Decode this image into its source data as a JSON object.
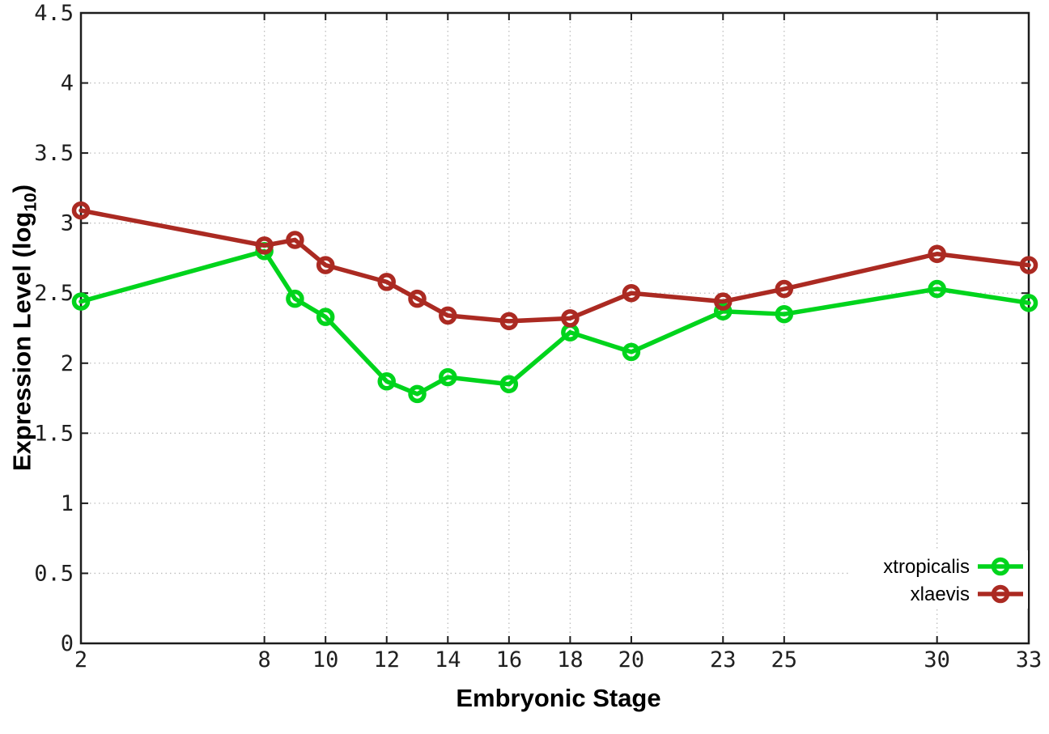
{
  "figure": {
    "background": "#ffffff",
    "axis_color": "#1c1c1c",
    "grid_color": "#bdbdbd",
    "text_color": "#202020"
  },
  "chart_data": {
    "type": "line",
    "title": "",
    "xlabel": "Embryonic Stage",
    "ylabel": "Expression Level (log10)",
    "ylabel_prefix": "Expression Level (log",
    "ylabel_sub": "10",
    "ylabel_suffix": ")",
    "xlim": [
      2,
      33
    ],
    "ylim": [
      0,
      4.5
    ],
    "xticks": [
      2,
      8,
      10,
      12,
      14,
      16,
      18,
      20,
      23,
      25,
      30,
      33
    ],
    "yticks": [
      0,
      0.5,
      1,
      1.5,
      2,
      2.5,
      3,
      3.5,
      4,
      4.5
    ],
    "grid": true,
    "grid_style": "dotted",
    "legend_position": "bottom-right",
    "marker": "open-circle",
    "x": [
      2,
      8,
      9,
      10,
      12,
      13,
      14,
      16,
      18,
      20,
      23,
      25,
      30,
      33
    ],
    "series": [
      {
        "name": "xtropicalis",
        "color": "#00d41c",
        "values": [
          2.44,
          2.8,
          2.46,
          2.33,
          1.87,
          1.78,
          1.9,
          1.85,
          2.22,
          2.08,
          2.37,
          2.35,
          2.53,
          2.43
        ]
      },
      {
        "name": "xlaevis",
        "color": "#ab2a22",
        "values": [
          3.09,
          2.84,
          2.88,
          2.7,
          2.58,
          2.46,
          2.34,
          2.3,
          2.32,
          2.5,
          2.44,
          2.53,
          2.78,
          2.7
        ]
      }
    ]
  }
}
